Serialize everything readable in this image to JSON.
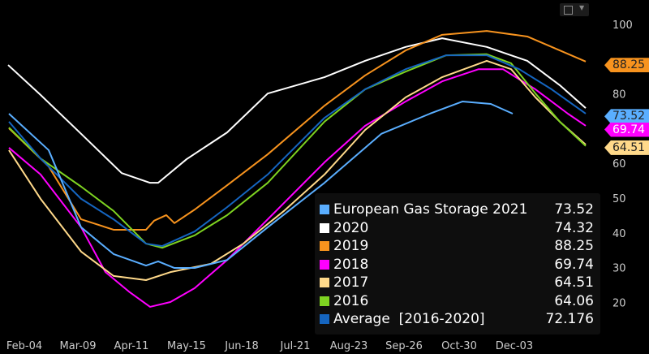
{
  "chart_data": {
    "type": "line",
    "title": "",
    "xlabel": "",
    "ylabel": "",
    "x_unit": "day of year",
    "x_ticks": [
      {
        "label": "Feb-04",
        "day": 35
      },
      {
        "label": "Mar-09",
        "day": 68
      },
      {
        "label": "Apr-11",
        "day": 101
      },
      {
        "label": "May-15",
        "day": 135
      },
      {
        "label": "Jun-18",
        "day": 169
      },
      {
        "label": "Jul-21",
        "day": 202
      },
      {
        "label": "Aug-23",
        "day": 235
      },
      {
        "label": "Sep-26",
        "day": 269
      },
      {
        "label": "Oct-30",
        "day": 303
      },
      {
        "label": "Dec-03",
        "day": 337
      }
    ],
    "y_ticks": [
      "100",
      "80",
      "60",
      "50",
      "40",
      "30",
      "20"
    ],
    "ylim": [
      15,
      105
    ],
    "xlim": [
      20,
      390
    ],
    "grid": false,
    "legend_position": "bottom-right",
    "series": [
      {
        "name": "2020",
        "label": "2020",
        "value_label": "74.32",
        "color": "#ffffff",
        "points": [
          [
            25,
            88.3
          ],
          [
            45,
            79.7
          ],
          [
            70,
            68.5
          ],
          [
            95,
            57.2
          ],
          [
            112.5,
            54.4
          ],
          [
            117.5,
            54.4
          ],
          [
            135,
            61.2
          ],
          [
            160,
            68.9
          ],
          [
            185,
            80.1
          ],
          [
            220,
            84.8
          ],
          [
            245,
            89.5
          ],
          [
            270,
            93.5
          ],
          [
            292.5,
            96
          ],
          [
            320,
            93.5
          ],
          [
            345,
            89.5
          ],
          [
            365,
            82.5
          ],
          [
            381,
            75.9
          ]
        ]
      },
      {
        "name": "2019",
        "label": "2019",
        "value_label": "88.25",
        "color": "#f7931e",
        "points": [
          [
            25.5,
            70.1
          ],
          [
            50,
            59.1
          ],
          [
            70,
            43.9
          ],
          [
            90,
            40.9
          ],
          [
            110,
            40.9
          ],
          [
            115,
            43.5
          ],
          [
            122.5,
            45.1
          ],
          [
            127.5,
            42.8
          ],
          [
            140,
            46.7
          ],
          [
            160,
            53.7
          ],
          [
            185,
            62.6
          ],
          [
            220,
            76.6
          ],
          [
            245,
            85.3
          ],
          [
            270,
            92.5
          ],
          [
            292.5,
            97
          ],
          [
            320,
            98.1
          ],
          [
            345,
            96.5
          ],
          [
            365,
            92.5
          ],
          [
            381,
            89.3
          ]
        ]
      },
      {
        "name": "2018",
        "label": "2018",
        "value_label": "69.74",
        "color": "#ff00ff",
        "points": [
          [
            25.5,
            64.5
          ],
          [
            45,
            56.8
          ],
          [
            70,
            41.6
          ],
          [
            85,
            28.7
          ],
          [
            100,
            22.9
          ],
          [
            112.5,
            18.7
          ],
          [
            125,
            20.1
          ],
          [
            140,
            24.1
          ],
          [
            160,
            32.2
          ],
          [
            185,
            43.9
          ],
          [
            220,
            60.3
          ],
          [
            245,
            70.8
          ],
          [
            270,
            77.8
          ],
          [
            292.5,
            83.6
          ],
          [
            315,
            87.1
          ],
          [
            330,
            87.1
          ],
          [
            350,
            81.3
          ],
          [
            370,
            74.3
          ],
          [
            381,
            70.8
          ]
        ]
      },
      {
        "name": "2017",
        "label": "2017",
        "value_label": "64.51",
        "color": "#ffd98a",
        "points": [
          [
            25.5,
            63.8
          ],
          [
            45,
            49.8
          ],
          [
            70,
            34.6
          ],
          [
            90,
            27.6
          ],
          [
            110,
            26.4
          ],
          [
            125,
            28.7
          ],
          [
            150,
            31.1
          ],
          [
            170,
            36.9
          ],
          [
            195,
            46.3
          ],
          [
            220,
            56.8
          ],
          [
            245,
            69.6
          ],
          [
            270,
            79
          ],
          [
            292.5,
            84.8
          ],
          [
            320,
            89.5
          ],
          [
            335,
            87.1
          ],
          [
            350,
            79
          ],
          [
            365,
            72
          ],
          [
            381,
            65.4
          ]
        ]
      },
      {
        "name": "2016",
        "label": "2016",
        "value_label": "64.06",
        "color": "#7ed321",
        "points": [
          [
            25.5,
            70.3
          ],
          [
            45,
            61.4
          ],
          [
            70,
            53.3
          ],
          [
            90,
            46.3
          ],
          [
            110,
            36.9
          ],
          [
            120,
            35.7
          ],
          [
            140,
            39.3
          ],
          [
            160,
            45.1
          ],
          [
            185,
            54.4
          ],
          [
            220,
            72
          ],
          [
            245,
            81.3
          ],
          [
            270,
            86.4
          ],
          [
            295,
            91.1
          ],
          [
            320,
            91.4
          ],
          [
            335,
            88.8
          ],
          [
            350,
            80.1
          ],
          [
            365,
            72
          ],
          [
            381,
            65
          ]
        ]
      },
      {
        "name": "Average [2016-2020]",
        "label": "Average  [2016-2020]",
        "value_label": "72.176",
        "color": "#1565c0",
        "points": [
          [
            25.5,
            72
          ],
          [
            45,
            61.4
          ],
          [
            70,
            49.8
          ],
          [
            90,
            43.9
          ],
          [
            110,
            36.9
          ],
          [
            120,
            36.2
          ],
          [
            140,
            40.4
          ],
          [
            160,
            47.4
          ],
          [
            185,
            56.8
          ],
          [
            220,
            73.1
          ],
          [
            245,
            81.3
          ],
          [
            270,
            87.1
          ],
          [
            295,
            91.1
          ],
          [
            320,
            91.1
          ],
          [
            340,
            87.1
          ],
          [
            360,
            81.3
          ],
          [
            381,
            74.3
          ]
        ]
      },
      {
        "name": "European Gas Storage 2021",
        "label": "European Gas Storage 2021",
        "value_label": "73.52",
        "color": "#5aaeff",
        "points": [
          [
            25.5,
            74.3
          ],
          [
            50,
            63.8
          ],
          [
            70,
            41.6
          ],
          [
            90,
            33.9
          ],
          [
            110,
            30.6
          ],
          [
            117.5,
            31.8
          ],
          [
            127.5,
            29.9
          ],
          [
            140,
            29.9
          ],
          [
            160,
            32.2
          ],
          [
            185,
            41.6
          ],
          [
            220,
            54.4
          ],
          [
            255,
            68.5
          ],
          [
            285,
            74.3
          ],
          [
            305,
            77.8
          ],
          [
            322.5,
            77.1
          ],
          [
            336,
            74.3
          ]
        ]
      }
    ],
    "legend_order": [
      6,
      0,
      1,
      2,
      3,
      4,
      5
    ],
    "last_value_tags": [
      {
        "text": "88.25",
        "value": 88.25,
        "color": "#f7931e",
        "text_color": "#222222"
      },
      {
        "text": "73.52",
        "value": 73.52,
        "color": "#5aaeff",
        "text_color": "#222222"
      },
      {
        "text": "69.74",
        "value": 69.74,
        "color": "#ff00ff",
        "text_color": "#ffffff"
      },
      {
        "text": "64.51",
        "value": 64.51,
        "color": "#ffd98a",
        "text_color": "#222222"
      }
    ]
  }
}
